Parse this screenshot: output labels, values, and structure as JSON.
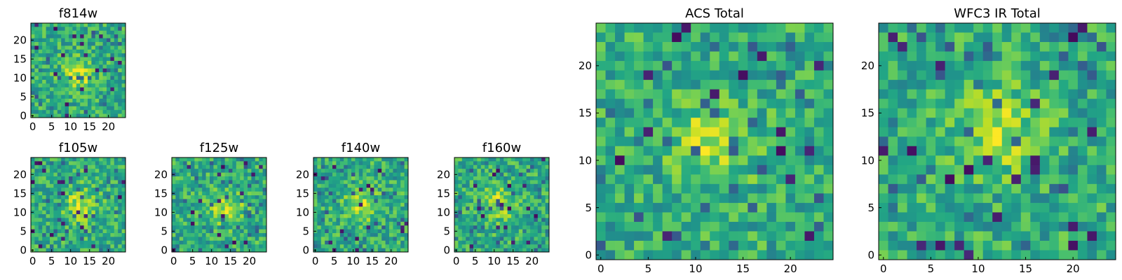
{
  "chart_data": [
    {
      "type": "heatmap",
      "title": "f814w",
      "grid_size": 25,
      "seed": 814,
      "blob": [
        12,
        11
      ],
      "xticks": [
        "0",
        "5",
        "10",
        "15",
        "20"
      ],
      "yticks": [
        "0",
        "5",
        "10",
        "15",
        "20"
      ],
      "xlim": [
        0,
        24
      ],
      "ylim": [
        0,
        24
      ],
      "colormap": "viridis"
    },
    {
      "type": "heatmap",
      "title": "f105w",
      "grid_size": 25,
      "seed": 105,
      "blob": [
        13,
        12
      ],
      "xticks": [
        "0",
        "5",
        "10",
        "15",
        "20"
      ],
      "yticks": [
        "0",
        "5",
        "10",
        "15",
        "20"
      ],
      "xlim": [
        0,
        24
      ],
      "ylim": [
        0,
        24
      ],
      "colormap": "viridis"
    },
    {
      "type": "heatmap",
      "title": "f125w",
      "grid_size": 25,
      "seed": 125,
      "blob": [
        14,
        11
      ],
      "xticks": [
        "0",
        "5",
        "10",
        "15",
        "20"
      ],
      "yticks": [
        "0",
        "5",
        "10",
        "15",
        "20"
      ],
      "xlim": [
        0,
        24
      ],
      "ylim": [
        0,
        24
      ],
      "colormap": "viridis"
    },
    {
      "type": "heatmap",
      "title": "f140w",
      "grid_size": 25,
      "seed": 140,
      "blob": [
        12,
        12
      ],
      "xticks": [
        "0",
        "5",
        "10",
        "15",
        "20"
      ],
      "yticks": [
        "0",
        "5",
        "10",
        "15",
        "20"
      ],
      "xlim": [
        0,
        24
      ],
      "ylim": [
        0,
        24
      ],
      "colormap": "viridis"
    },
    {
      "type": "heatmap",
      "title": "f160w",
      "grid_size": 25,
      "seed": 160,
      "blob": [
        11,
        12
      ],
      "xticks": [
        "0",
        "5",
        "10",
        "15",
        "20"
      ],
      "yticks": [
        "0",
        "5",
        "10",
        "15",
        "20"
      ],
      "xlim": [
        0,
        24
      ],
      "ylim": [
        0,
        24
      ],
      "colormap": "viridis"
    },
    {
      "type": "heatmap",
      "title": "ACS Total",
      "grid_size": 25,
      "seed": 900,
      "blob": [
        12,
        12
      ],
      "xticks": [
        "0",
        "5",
        "10",
        "15",
        "20"
      ],
      "yticks": [
        "0",
        "5",
        "10",
        "15",
        "20"
      ],
      "xlim": [
        0,
        24
      ],
      "ylim": [
        0,
        24
      ],
      "colormap": "viridis"
    },
    {
      "type": "heatmap",
      "title": "WFC3 IR Total",
      "grid_size": 25,
      "seed": 901,
      "blob": [
        12,
        13
      ],
      "xticks": [
        "0",
        "5",
        "10",
        "15",
        "20"
      ],
      "yticks": [
        "0",
        "5",
        "10",
        "15",
        "20"
      ],
      "xlim": [
        0,
        24
      ],
      "ylim": [
        0,
        24
      ],
      "colormap": "viridis"
    }
  ]
}
